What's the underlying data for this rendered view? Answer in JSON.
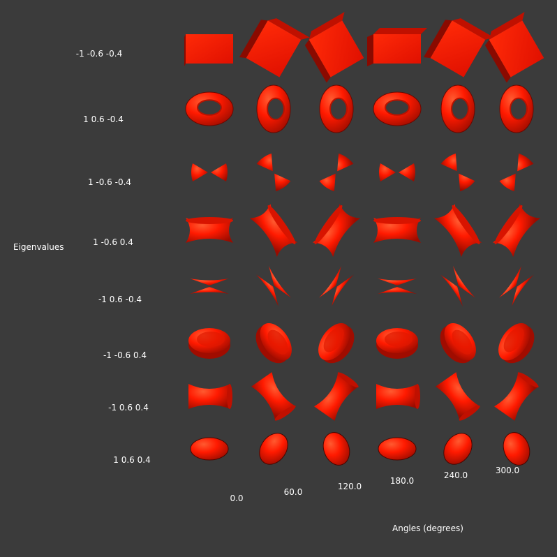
{
  "axis_labels": {
    "vertical": "Eigenvalues",
    "horizontal": "Angles (degrees)"
  },
  "row_labels": [
    "-1 -0.6 -0.4",
    "1 0.6 -0.4",
    "1 -0.6 -0.4",
    "1 -0.6 0.4",
    "-1 0.6 -0.4",
    "-1 -0.6 0.4",
    "-1 0.6 0.4",
    "1 0.6 0.4"
  ],
  "angle_labels": [
    "0.0",
    "60.0",
    "120.0",
    "180.0",
    "240.0",
    "300.0"
  ],
  "rows": [
    {
      "shape": "box"
    },
    {
      "shape": "torus"
    },
    {
      "shape": "double-cone-horizontal"
    },
    {
      "shape": "hyperboloid"
    },
    {
      "shape": "double-cone-vertical"
    },
    {
      "shape": "flat-cylinder"
    },
    {
      "shape": "concave-spool"
    },
    {
      "shape": "ellipsoid"
    }
  ],
  "colors": {
    "background": "#3b3b3b",
    "glyph": "#ff1a00",
    "glyph_dark": "#8a0a00",
    "text": "#ffffff"
  }
}
